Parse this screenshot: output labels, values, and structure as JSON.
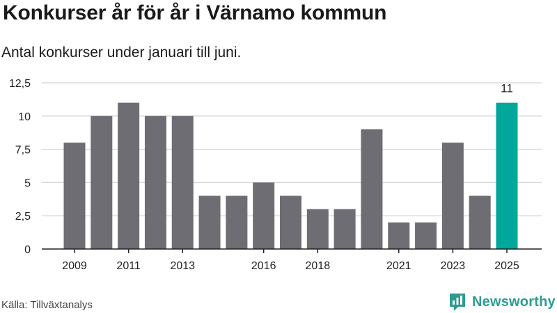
{
  "title": "Konkurser år för år i Värnamo kommun",
  "subtitle": "Antal konkurser under januari till juni.",
  "source": "Källa: Tillväxtanalys",
  "brand": {
    "name": "Newsworthy",
    "icon": "newsworthy-logo-icon",
    "color": "#2a9d8f"
  },
  "chart_data": {
    "type": "bar",
    "categories": [
      "2009",
      "2010",
      "2011",
      "2012",
      "2013",
      "2014",
      "2015",
      "2016",
      "2017",
      "2018",
      "2019",
      "2020",
      "2021",
      "2022",
      "2023",
      "2024",
      "2025"
    ],
    "values": [
      8,
      10,
      11,
      10,
      10,
      4,
      4,
      5,
      4,
      3,
      3,
      9,
      2,
      2,
      8,
      4,
      11
    ],
    "x_tick_labels": [
      "2009",
      "2011",
      "2013",
      "2016",
      "2018",
      "2021",
      "2023",
      "2025"
    ],
    "y_ticks": [
      0,
      2.5,
      5,
      7.5,
      10,
      12.5
    ],
    "y_tick_labels": [
      "0",
      "2,5",
      "5",
      "7,5",
      "10",
      "12,5"
    ],
    "ylim": [
      0,
      12.5
    ],
    "grid": true,
    "colors": {
      "bar": "#6e6d74",
      "highlight": "#00a79b",
      "grid": "#d9d9d9",
      "axis": "#222222"
    },
    "highlight_category": "2025",
    "data_labels": [
      {
        "category": "2025",
        "text": "11"
      }
    ]
  }
}
